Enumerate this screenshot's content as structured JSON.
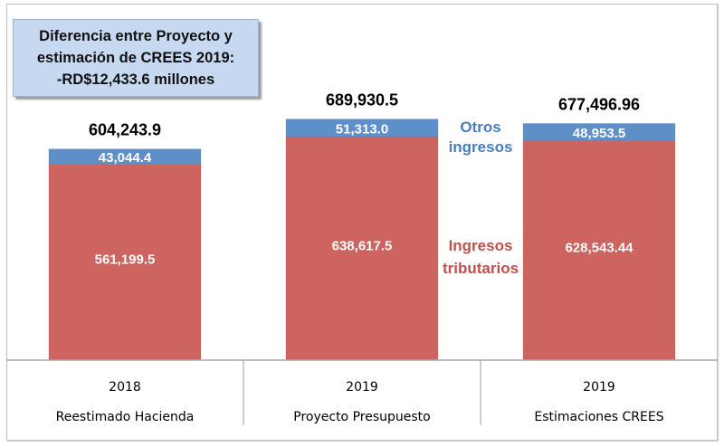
{
  "annotation": {
    "lines": [
      "Diferencia entre Proyecto y",
      "estimación de CREES 2019:",
      "-RD$12,433.6 millones"
    ]
  },
  "chart_data": {
    "type": "bar",
    "stacked": true,
    "title": "",
    "xlabel": "",
    "ylabel": "",
    "ylim": [
      0,
      1031000
    ],
    "grid": false,
    "categories": [
      {
        "year": "2018",
        "label": "Reestimado Hacienda"
      },
      {
        "year": "2019",
        "label": "Proyecto Presupuesto"
      },
      {
        "year": "2019",
        "label": "Estimaciones CREES"
      }
    ],
    "series": [
      {
        "name": "Ingresos tributarios",
        "color": "#cd645f",
        "values": [
          561199.5,
          638617.5,
          628543.44
        ],
        "labels": [
          "561,199.5",
          "638,617.5",
          "628,543.44"
        ]
      },
      {
        "name": "Otros ingresos",
        "color": "#5e8fc8",
        "values": [
          43044.4,
          51313.0,
          48953.5
        ],
        "labels": [
          "43,044.4",
          "51,313.0",
          "48,953.5"
        ]
      }
    ],
    "totals": {
      "values": [
        604243.9,
        689930.5,
        677496.96
      ],
      "labels": [
        "604,243.9",
        "689,930.5",
        "677,496.96"
      ]
    },
    "legend": [
      {
        "lines": [
          "Otros",
          "ingresos"
        ],
        "color": "#4a7ebb",
        "placement": "between-bars-2-3-top"
      },
      {
        "lines": [
          "Ingresos",
          "tributarios"
        ],
        "color": "#c0504d",
        "placement": "between-bars-2-3-middle"
      }
    ]
  }
}
